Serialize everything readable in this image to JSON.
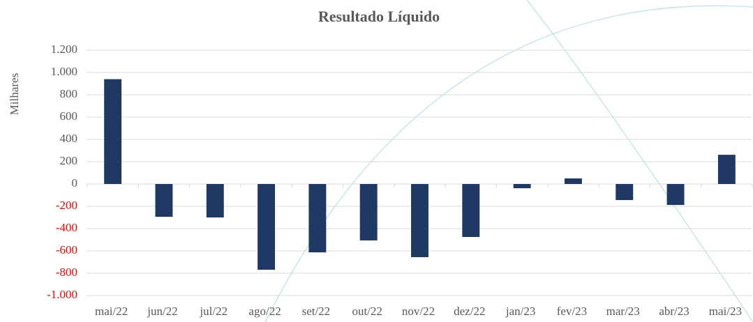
{
  "chart_data": {
    "type": "bar",
    "title": "Resultado Líquido",
    "y_label": "Milhares",
    "categories": [
      "mai/22",
      "jun/22",
      "jul/22",
      "ago/22",
      "set/22",
      "out/22",
      "nov/22",
      "dez/22",
      "jan/23",
      "fev/23",
      "mar/23",
      "abr/23",
      "mai/23"
    ],
    "values": [
      940,
      -294,
      -300,
      -769,
      -613,
      -506,
      -656,
      -475,
      -38,
      50,
      -144,
      -188,
      262
    ],
    "color": "#1f3864",
    "ylim": [
      -1000,
      1200
    ],
    "yticks": [
      {
        "value": -1000,
        "label": "-1.000"
      },
      -800,
      -600,
      -400,
      -200,
      0,
      200,
      400,
      600,
      800,
      {
        "value": 1000,
        "label": "1.000"
      },
      {
        "value": 1200,
        "label": "1.200"
      }
    ],
    "grid": true,
    "negative_tick_color": "#ff0000"
  }
}
